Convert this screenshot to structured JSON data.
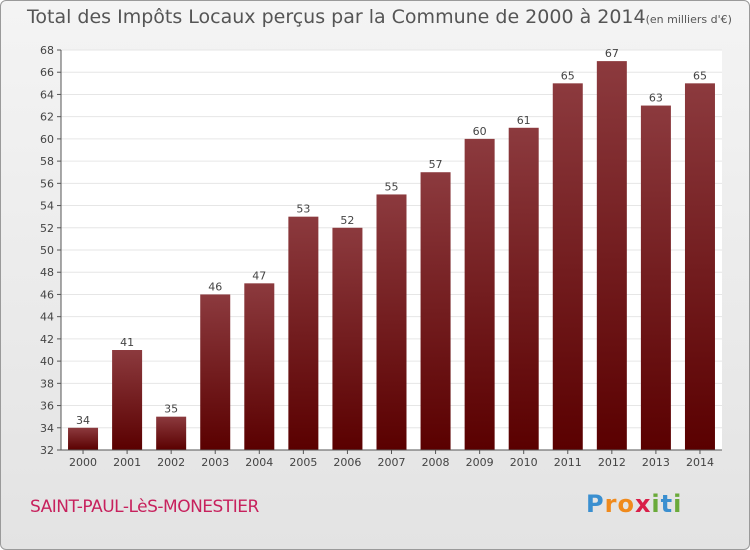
{
  "title": "Total des Impôts Locaux perçus par la Commune de 2000 à 2014",
  "title_unit": "(en milliers d'€)",
  "commune": "SAINT-PAUL-LèS-MONESTIER",
  "logo": {
    "letters": [
      "P",
      "r",
      "o",
      "x",
      "i",
      "t",
      "i"
    ],
    "colors": [
      "#3a8fd0",
      "#f08a1c",
      "#f08a1c",
      "#d91e48",
      "#6aaa3a",
      "#3a8fd0",
      "#6aaa3a"
    ]
  },
  "colors": {
    "bar_top": "#8c3a3e",
    "bar_bottom": "#5a0000",
    "axis": "#555555",
    "grid": "#e6e6e6"
  },
  "chart_data": {
    "type": "bar",
    "title": "Total des Impôts Locaux perçus par la Commune de 2000 à 2014",
    "xlabel": "",
    "ylabel": "",
    "ylim": [
      32,
      68
    ],
    "yticks": [
      32,
      34,
      36,
      38,
      40,
      42,
      44,
      46,
      48,
      50,
      52,
      54,
      56,
      58,
      60,
      62,
      64,
      66,
      68
    ],
    "categories": [
      "2000",
      "2001",
      "2002",
      "2003",
      "2004",
      "2005",
      "2006",
      "2007",
      "2008",
      "2009",
      "2010",
      "2011",
      "2012",
      "2013",
      "2014"
    ],
    "values": [
      34,
      41,
      35,
      46,
      47,
      53,
      52,
      55,
      57,
      60,
      61,
      65,
      67,
      63,
      65
    ]
  }
}
